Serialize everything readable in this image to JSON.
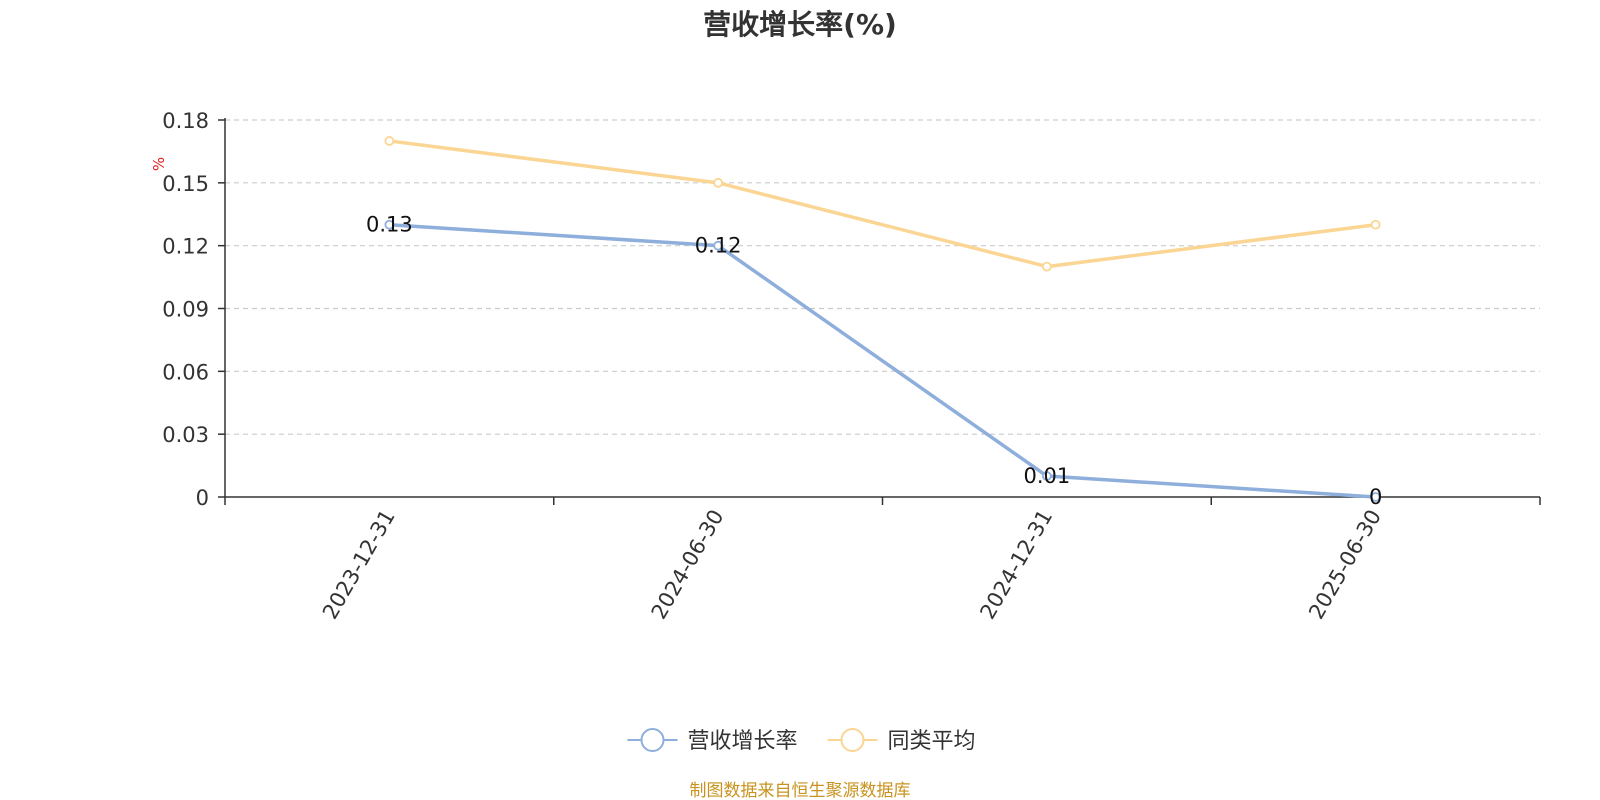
{
  "chart_data": {
    "type": "line",
    "title": "营收增长率(%)",
    "y_unit": "%",
    "categories": [
      "2023-12-31",
      "2024-06-30",
      "2024-12-31",
      "2025-06-30"
    ],
    "ylim": [
      0,
      0.18
    ],
    "y_ticks": [
      "0",
      "0.03",
      "0.06",
      "0.09",
      "0.12",
      "0.15",
      "0.18"
    ],
    "grid": true,
    "legend_position": "bottom-center",
    "series": [
      {
        "name": "营收增长率",
        "values": [
          0.13,
          0.12,
          0.01,
          0
        ],
        "labels": [
          "0.13",
          "0.12",
          "0.01",
          "0"
        ],
        "color": "#8eaedb",
        "show_labels": true
      },
      {
        "name": "同类平均",
        "values": [
          0.17,
          0.15,
          0.11,
          0.13
        ],
        "color": "#fbd593",
        "show_labels": false
      }
    ]
  },
  "footer": {
    "source": "制图数据来自恒生聚源数据库"
  }
}
